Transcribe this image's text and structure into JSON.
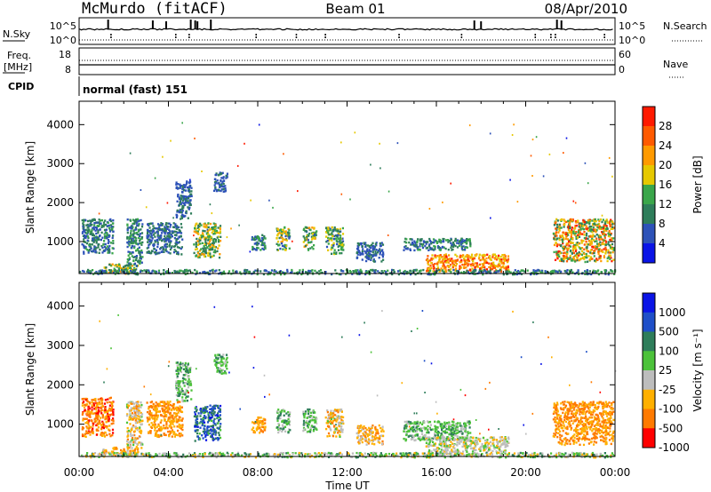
{
  "header": {
    "station": "McMurdo (fitACF)",
    "beam": "Beam 01",
    "date": "08/Apr/2010"
  },
  "side_labels": {
    "nsky": "N.Sky",
    "freq": "Freq.",
    "mhz": "[MHz]",
    "cpid": "CPID",
    "nsearch": "N.Search",
    "nave": "Nave"
  },
  "strip_ticks": {
    "nsky_top": "10^5",
    "nsky_bottom": "10^0",
    "nsearch_top": "10^5",
    "nsearch_bottom": "10^0",
    "freq_top": "18",
    "freq_bottom": "8",
    "nave_top": "60",
    "nave_bottom": "0"
  },
  "cpid_text": "normal (fast) 151",
  "colors": {
    "power": [
      "#0a14e6",
      "#2d52b8",
      "#2e7d5a",
      "#3aa64a",
      "#e6c800",
      "#ff9a00",
      "#ff5a00",
      "#ff1a00"
    ],
    "velocity": [
      "#0a14e6",
      "#1f4fc8",
      "#2e7d5a",
      "#4cc23a",
      "#bdbdbd",
      "#ffb000",
      "#ff7a00",
      "#ff0000"
    ]
  },
  "chart_data": [
    {
      "type": "heatmap",
      "panel": "power",
      "ylabel": "Slant Range [km]",
      "xlabel": "Time UT",
      "x_ticks": [
        "00:00",
        "04:00",
        "08:00",
        "12:00",
        "16:00",
        "20:00",
        "00:00"
      ],
      "x_range_hours": [
        0,
        24
      ],
      "ylim": [
        180,
        4600
      ],
      "y_ticks": [
        1000,
        2000,
        3000,
        4000
      ],
      "colorbar_label": "Power [dB]",
      "colorbar_ticks": [
        "4",
        "8",
        "12",
        "16",
        "20",
        "24",
        "28"
      ],
      "colorbar_range": [
        0,
        32
      ],
      "clusters": [
        {
          "t": [
            0.1,
            1.5
          ],
          "r": [
            700,
            1600
          ],
          "val": [
            4,
            14
          ]
        },
        {
          "t": [
            1.0,
            2.6
          ],
          "r": [
            200,
            450
          ],
          "val": [
            8,
            24
          ]
        },
        {
          "t": [
            2.1,
            2.8
          ],
          "r": [
            400,
            1600
          ],
          "val": [
            4,
            16
          ]
        },
        {
          "t": [
            3.0,
            4.6
          ],
          "r": [
            700,
            1500
          ],
          "val": [
            4,
            12
          ]
        },
        {
          "t": [
            4.3,
            5.0
          ],
          "r": [
            1600,
            2600
          ],
          "val": [
            4,
            10
          ]
        },
        {
          "t": [
            5.1,
            6.3
          ],
          "r": [
            600,
            1500
          ],
          "val": [
            8,
            22
          ]
        },
        {
          "t": [
            6.0,
            6.6
          ],
          "r": [
            2300,
            2800
          ],
          "val": [
            4,
            10
          ]
        },
        {
          "t": [
            7.7,
            8.3
          ],
          "r": [
            800,
            1200
          ],
          "val": [
            4,
            14
          ]
        },
        {
          "t": [
            8.8,
            9.4
          ],
          "r": [
            800,
            1400
          ],
          "val": [
            6,
            22
          ]
        },
        {
          "t": [
            10.0,
            10.6
          ],
          "r": [
            800,
            1400
          ],
          "val": [
            6,
            22
          ]
        },
        {
          "t": [
            11.0,
            11.8
          ],
          "r": [
            700,
            1400
          ],
          "val": [
            6,
            20
          ]
        },
        {
          "t": [
            12.4,
            13.6
          ],
          "r": [
            500,
            1000
          ],
          "val": [
            4,
            10
          ]
        },
        {
          "t": [
            14.5,
            17.5
          ],
          "r": [
            800,
            1100
          ],
          "val": [
            4,
            14
          ]
        },
        {
          "t": [
            15.5,
            19.2
          ],
          "r": [
            250,
            700
          ],
          "val": [
            16,
            30
          ]
        },
        {
          "t": [
            21.2,
            23.9
          ],
          "r": [
            500,
            1600
          ],
          "val": [
            8,
            30
          ]
        },
        {
          "t": [
            0.0,
            24.0
          ],
          "r": [
            180,
            300
          ],
          "val": [
            4,
            16
          ]
        }
      ]
    },
    {
      "type": "heatmap",
      "panel": "velocity",
      "ylabel": "Slant Range [km]",
      "xlabel": "Time UT",
      "x_ticks": [
        "00:00",
        "04:00",
        "08:00",
        "12:00",
        "16:00",
        "20:00",
        "00:00"
      ],
      "x_range_hours": [
        0,
        24
      ],
      "ylim": [
        180,
        4600
      ],
      "y_ticks": [
        1000,
        2000,
        3000,
        4000
      ],
      "colorbar_label": "Velocity [m s⁻¹]",
      "colorbar_ticks": [
        "1000",
        "500",
        "100",
        "25",
        "-25",
        "-100",
        "-500",
        "-1000"
      ],
      "clusters": [
        {
          "t": [
            0.1,
            1.5
          ],
          "r": [
            700,
            1700
          ],
          "val": [
            5,
            7
          ]
        },
        {
          "t": [
            1.0,
            2.6
          ],
          "r": [
            200,
            450
          ],
          "val": [
            4,
            6
          ]
        },
        {
          "t": [
            2.1,
            2.8
          ],
          "r": [
            400,
            1600
          ],
          "val": [
            3,
            6
          ]
        },
        {
          "t": [
            3.0,
            4.6
          ],
          "r": [
            700,
            1600
          ],
          "val": [
            5,
            6
          ]
        },
        {
          "t": [
            4.3,
            5.0
          ],
          "r": [
            1600,
            2600
          ],
          "val": [
            2,
            4
          ]
        },
        {
          "t": [
            5.1,
            6.3
          ],
          "r": [
            600,
            1500
          ],
          "val": [
            0,
            3
          ]
        },
        {
          "t": [
            6.0,
            6.6
          ],
          "r": [
            2300,
            2800
          ],
          "val": [
            2,
            4
          ]
        },
        {
          "t": [
            7.7,
            8.3
          ],
          "r": [
            800,
            1200
          ],
          "val": [
            5,
            6
          ]
        },
        {
          "t": [
            8.8,
            9.4
          ],
          "r": [
            800,
            1400
          ],
          "val": [
            2,
            4
          ]
        },
        {
          "t": [
            10.0,
            10.6
          ],
          "r": [
            800,
            1400
          ],
          "val": [
            2,
            4
          ]
        },
        {
          "t": [
            11.0,
            11.8
          ],
          "r": [
            700,
            1400
          ],
          "val": [
            3,
            6
          ]
        },
        {
          "t": [
            12.4,
            13.6
          ],
          "r": [
            500,
            1000
          ],
          "val": [
            4,
            6
          ]
        },
        {
          "t": [
            14.5,
            17.5
          ],
          "r": [
            600,
            1100
          ],
          "val": [
            2,
            4
          ]
        },
        {
          "t": [
            15.5,
            19.2
          ],
          "r": [
            250,
            700
          ],
          "val": [
            3,
            5
          ]
        },
        {
          "t": [
            21.2,
            23.9
          ],
          "r": [
            500,
            1600
          ],
          "val": [
            5,
            6
          ]
        },
        {
          "t": [
            0.0,
            24.0
          ],
          "r": [
            180,
            300
          ],
          "val": [
            2,
            5
          ]
        }
      ]
    }
  ]
}
